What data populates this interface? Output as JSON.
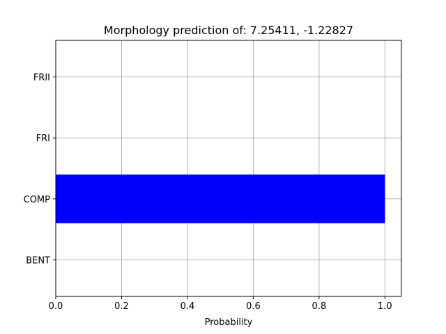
{
  "chart_data": {
    "type": "bar",
    "orientation": "horizontal",
    "title": "Morphology prediction of: 7.25411, -1.22827",
    "xlabel": "Probability",
    "ylabel": "",
    "categories": [
      "BENT",
      "COMP",
      "FRI",
      "FRII"
    ],
    "values": [
      0.0,
      1.0,
      0.0,
      0.0
    ],
    "xlim": [
      0.0,
      1.05
    ],
    "xticks": [
      0.0,
      0.2,
      0.4,
      0.6,
      0.8,
      1.0
    ],
    "xtick_labels": [
      "0.0",
      "0.2",
      "0.4",
      "0.6",
      "0.8",
      "1.0"
    ],
    "grid": true,
    "legend": "none",
    "bar_color": "#0000ff",
    "grid_color": "#b0b0b0"
  }
}
